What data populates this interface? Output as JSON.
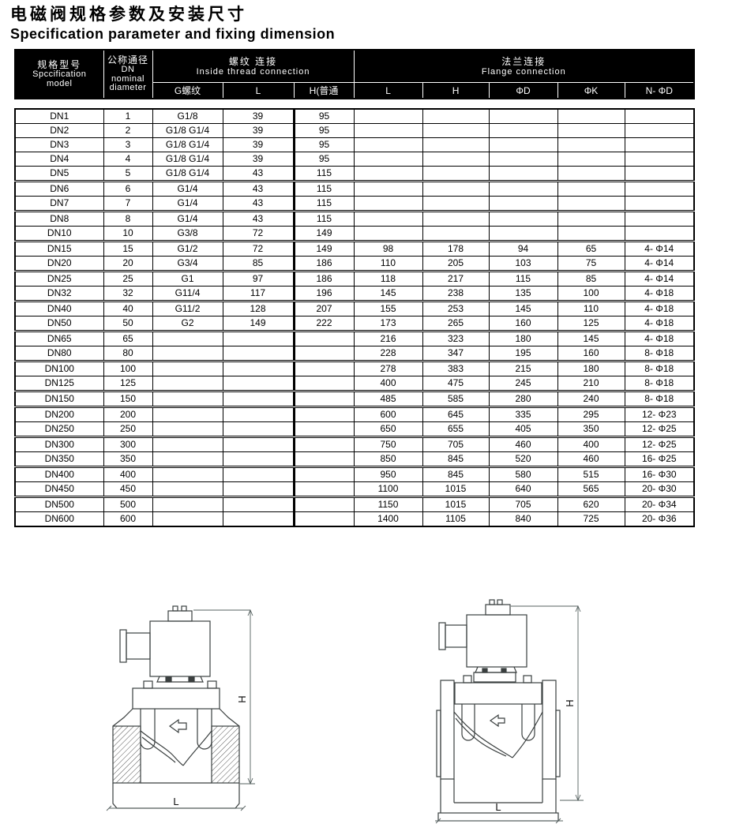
{
  "title": {
    "cn": "电磁阀规格参数及安装尺寸",
    "en": "Specification parameter and fixing dimension"
  },
  "table": {
    "header": {
      "model": [
        "规格型号",
        "Spccification",
        "model"
      ],
      "dn": [
        "公称通径",
        "DN",
        "nominal",
        "diameter"
      ],
      "thread": {
        "cn": "螺纹 连接",
        "en": "Inside thread connection",
        "cols": [
          "G螺纹",
          "L",
          "H(普通"
        ]
      },
      "flange": {
        "cn": "法兰连接",
        "en": "Flange connection",
        "cols": [
          "L",
          "H",
          "ΦD",
          "ΦK",
          "N- ΦD"
        ]
      }
    },
    "rows": [
      {
        "sep": false,
        "cells": [
          "DN1",
          "1",
          "G1/8",
          "39",
          "95",
          "",
          "",
          "",
          "",
          ""
        ]
      },
      {
        "sep": false,
        "cells": [
          "DN2",
          "2",
          "G1/8 G1/4",
          "39",
          "95",
          "",
          "",
          "",
          "",
          ""
        ]
      },
      {
        "sep": false,
        "cells": [
          "DN3",
          "3",
          "G1/8 G1/4",
          "39",
          "95",
          "",
          "",
          "",
          "",
          ""
        ]
      },
      {
        "sep": false,
        "cells": [
          "DN4",
          "4",
          "G1/8 G1/4",
          "39",
          "95",
          "",
          "",
          "",
          "",
          ""
        ]
      },
      {
        "sep": false,
        "cells": [
          "DN5",
          "5",
          "G1/8 G1/4",
          "43",
          "115",
          "",
          "",
          "",
          "",
          ""
        ]
      },
      {
        "sep": true,
        "cells": [
          "DN6",
          "6",
          "G1/4",
          "43",
          "115",
          "",
          "",
          "",
          "",
          ""
        ]
      },
      {
        "sep": false,
        "cells": [
          "DN7",
          "7",
          "G1/4",
          "43",
          "115",
          "",
          "",
          "",
          "",
          ""
        ]
      },
      {
        "sep": true,
        "cells": [
          "DN8",
          "8",
          "G1/4",
          "43",
          "115",
          "",
          "",
          "",
          "",
          ""
        ]
      },
      {
        "sep": false,
        "cells": [
          "DN10",
          "10",
          "G3/8",
          "72",
          "149",
          "",
          "",
          "",
          "",
          ""
        ]
      },
      {
        "sep": true,
        "cells": [
          "DN15",
          "15",
          "G1/2",
          "72",
          "149",
          "98",
          "178",
          "94",
          "65",
          "4- Φ14"
        ]
      },
      {
        "sep": false,
        "cells": [
          "DN20",
          "20",
          "G3/4",
          "85",
          "186",
          "110",
          "205",
          "103",
          "75",
          "4- Φ14"
        ]
      },
      {
        "sep": true,
        "cells": [
          "DN25",
          "25",
          "G1",
          "97",
          "186",
          "118",
          "217",
          "115",
          "85",
          "4- Φ14"
        ]
      },
      {
        "sep": false,
        "cells": [
          "DN32",
          "32",
          "G11/4",
          "117",
          "196",
          "145",
          "238",
          "135",
          "100",
          "4- Φ18"
        ]
      },
      {
        "sep": true,
        "cells": [
          "DN40",
          "40",
          "G11/2",
          "128",
          "207",
          "155",
          "253",
          "145",
          "110",
          "4- Φ18"
        ]
      },
      {
        "sep": false,
        "cells": [
          "DN50",
          "50",
          "G2",
          "149",
          "222",
          "173",
          "265",
          "160",
          "125",
          "4- Φ18"
        ]
      },
      {
        "sep": true,
        "cells": [
          "DN65",
          "65",
          "",
          "",
          "",
          "216",
          "323",
          "180",
          "145",
          "4- Φ18"
        ]
      },
      {
        "sep": false,
        "cells": [
          "DN80",
          "80",
          "",
          "",
          "",
          "228",
          "347",
          "195",
          "160",
          "8- Φ18"
        ]
      },
      {
        "sep": true,
        "cells": [
          "DN100",
          "100",
          "",
          "",
          "",
          "278",
          "383",
          "215",
          "180",
          "8- Φ18"
        ]
      },
      {
        "sep": false,
        "cells": [
          "DN125",
          "125",
          "",
          "",
          "",
          "400",
          "475",
          "245",
          "210",
          "8- Φ18"
        ]
      },
      {
        "sep": true,
        "cells": [
          "DN150",
          "150",
          "",
          "",
          "",
          "485",
          "585",
          "280",
          "240",
          "8- Φ18"
        ]
      },
      {
        "sep": true,
        "cells": [
          "DN200",
          "200",
          "",
          "",
          "",
          "600",
          "645",
          "335",
          "295",
          "12- Φ23"
        ]
      },
      {
        "sep": false,
        "cells": [
          "DN250",
          "250",
          "",
          "",
          "",
          "650",
          "655",
          "405",
          "350",
          "12- Φ25"
        ]
      },
      {
        "sep": true,
        "cells": [
          "DN300",
          "300",
          "",
          "",
          "",
          "750",
          "705",
          "460",
          "400",
          "12- Φ25"
        ]
      },
      {
        "sep": false,
        "cells": [
          "DN350",
          "350",
          "",
          "",
          "",
          "850",
          "845",
          "520",
          "460",
          "16- Φ25"
        ]
      },
      {
        "sep": true,
        "cells": [
          "DN400",
          "400",
          "",
          "",
          "",
          "950",
          "845",
          "580",
          "515",
          "16- Φ30"
        ]
      },
      {
        "sep": false,
        "cells": [
          "DN450",
          "450",
          "",
          "",
          "",
          "1100",
          "1015",
          "640",
          "565",
          "20- Φ30"
        ]
      },
      {
        "sep": true,
        "cells": [
          "DN500",
          "500",
          "",
          "",
          "",
          "1150",
          "1015",
          "705",
          "620",
          "20- Φ34"
        ]
      },
      {
        "sep": false,
        "cells": [
          "DN600",
          "600",
          "",
          "",
          "",
          "1400",
          "1105",
          "840",
          "725",
          "20- Φ36"
        ]
      }
    ]
  },
  "diagrams": {
    "left": {
      "h_label": "H",
      "l_label": "L"
    },
    "right": {
      "h_label": "H",
      "l_label": "L"
    }
  },
  "colors": {
    "header_bg": "#000000",
    "border": "#000000",
    "text": "#000000",
    "drawing_line": "#3a3f3f"
  }
}
